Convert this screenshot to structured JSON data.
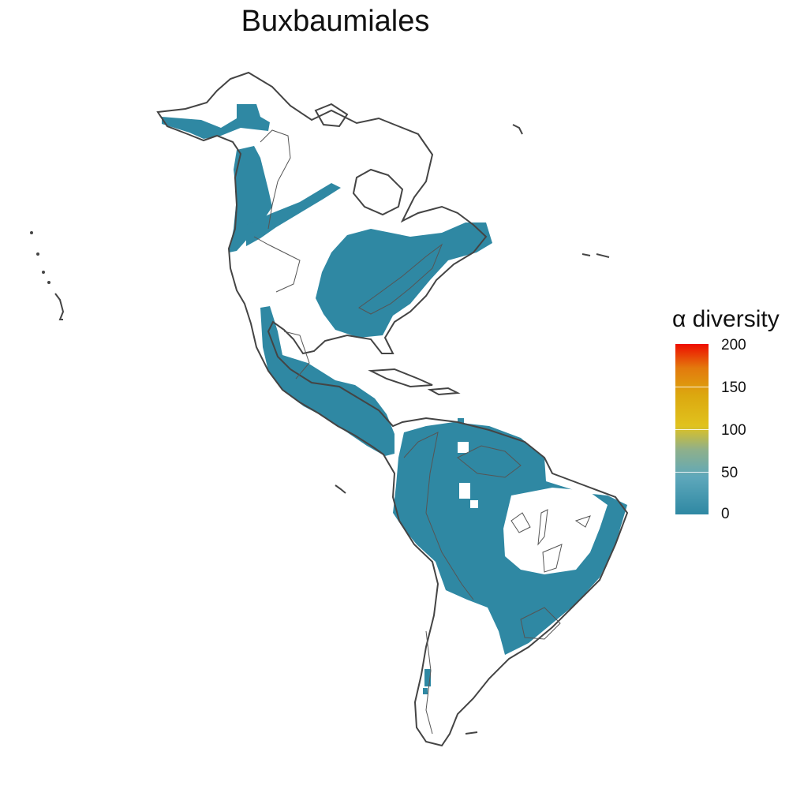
{
  "title": "Buxbaumiales",
  "legend": {
    "title": "α diversity",
    "ticks": [
      "200",
      "150",
      "100",
      "50",
      "0"
    ],
    "min": 0,
    "max": 200,
    "colors": [
      "#2f88a3",
      "#5ea8bb",
      "#8fb08a",
      "#e0c21e",
      "#dca80f",
      "#e3790d",
      "#ee0d00"
    ]
  },
  "colors": {
    "fill": "#2f88a3",
    "coast": "#444444",
    "background": "#ffffff"
  }
}
